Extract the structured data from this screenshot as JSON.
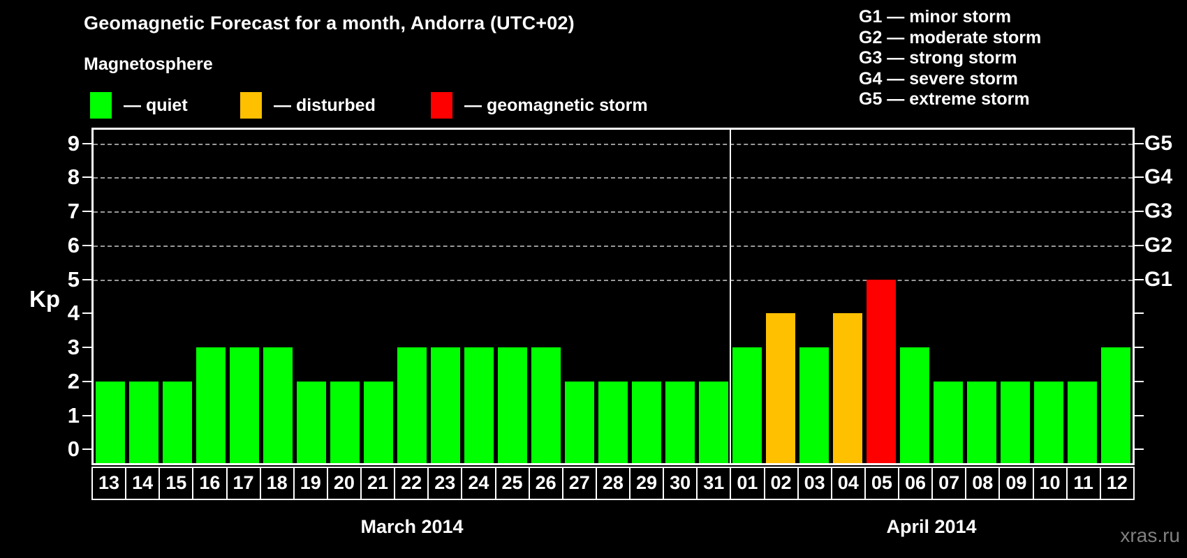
{
  "title": "Geomagnetic Forecast for a month, Andorra (UTC+02)",
  "subtitle": "Magnetosphere",
  "legend": {
    "items": [
      {
        "state": "quiet",
        "label": "— quiet",
        "color": "#00ff00"
      },
      {
        "state": "disturbed",
        "label": "— disturbed",
        "color": "#ffc000"
      },
      {
        "state": "storm",
        "label": "— geomagnetic storm",
        "color": "#ff0000"
      }
    ]
  },
  "storm_scale": [
    {
      "code": "G1",
      "label": "G1 — minor storm"
    },
    {
      "code": "G2",
      "label": "G2 — moderate storm"
    },
    {
      "code": "G3",
      "label": "G3 — strong storm"
    },
    {
      "code": "G4",
      "label": "G4 — severe storm"
    },
    {
      "code": "G5",
      "label": "G5 — extreme storm"
    }
  ],
  "watermark": "xras.ru",
  "chart_data": {
    "type": "bar",
    "title": "Geomagnetic Forecast for a month, Andorra (UTC+02)",
    "ylabel": "Kp",
    "ylim": [
      -0.4,
      9.4
    ],
    "yticks": [
      0,
      1,
      2,
      3,
      4,
      5,
      6,
      7,
      8,
      9
    ],
    "gridlines_kp": [
      5,
      6,
      7,
      8,
      9
    ],
    "grid": "dashed horizontal lines only at Kp 5-9",
    "legend_position": "top-left",
    "right_axis": [
      {
        "kp": 5,
        "label": "G1"
      },
      {
        "kp": 6,
        "label": "G2"
      },
      {
        "kp": 7,
        "label": "G3"
      },
      {
        "kp": 8,
        "label": "G4"
      },
      {
        "kp": 9,
        "label": "G5"
      }
    ],
    "state_colors": {
      "quiet": "#00ff00",
      "disturbed": "#ffc000",
      "storm": "#ff0000"
    },
    "months": [
      {
        "label": "March 2014",
        "days": [
          "13",
          "14",
          "15",
          "16",
          "17",
          "18",
          "19",
          "20",
          "21",
          "22",
          "23",
          "24",
          "25",
          "26",
          "27",
          "28",
          "29",
          "30",
          "31"
        ],
        "values": [
          2,
          2,
          2,
          3,
          3,
          3,
          2,
          2,
          2,
          3,
          3,
          3,
          3,
          3,
          2,
          2,
          2,
          2,
          2
        ],
        "states": [
          "quiet",
          "quiet",
          "quiet",
          "quiet",
          "quiet",
          "quiet",
          "quiet",
          "quiet",
          "quiet",
          "quiet",
          "quiet",
          "quiet",
          "quiet",
          "quiet",
          "quiet",
          "quiet",
          "quiet",
          "quiet",
          "quiet"
        ]
      },
      {
        "label": "April 2014",
        "days": [
          "01",
          "02",
          "03",
          "04",
          "05",
          "06",
          "07",
          "08",
          "09",
          "10",
          "11",
          "12"
        ],
        "values": [
          3,
          4,
          3,
          4,
          5,
          3,
          2,
          2,
          2,
          2,
          2,
          3
        ],
        "states": [
          "quiet",
          "disturbed",
          "quiet",
          "disturbed",
          "storm",
          "quiet",
          "quiet",
          "quiet",
          "quiet",
          "quiet",
          "quiet",
          "quiet"
        ]
      }
    ]
  }
}
